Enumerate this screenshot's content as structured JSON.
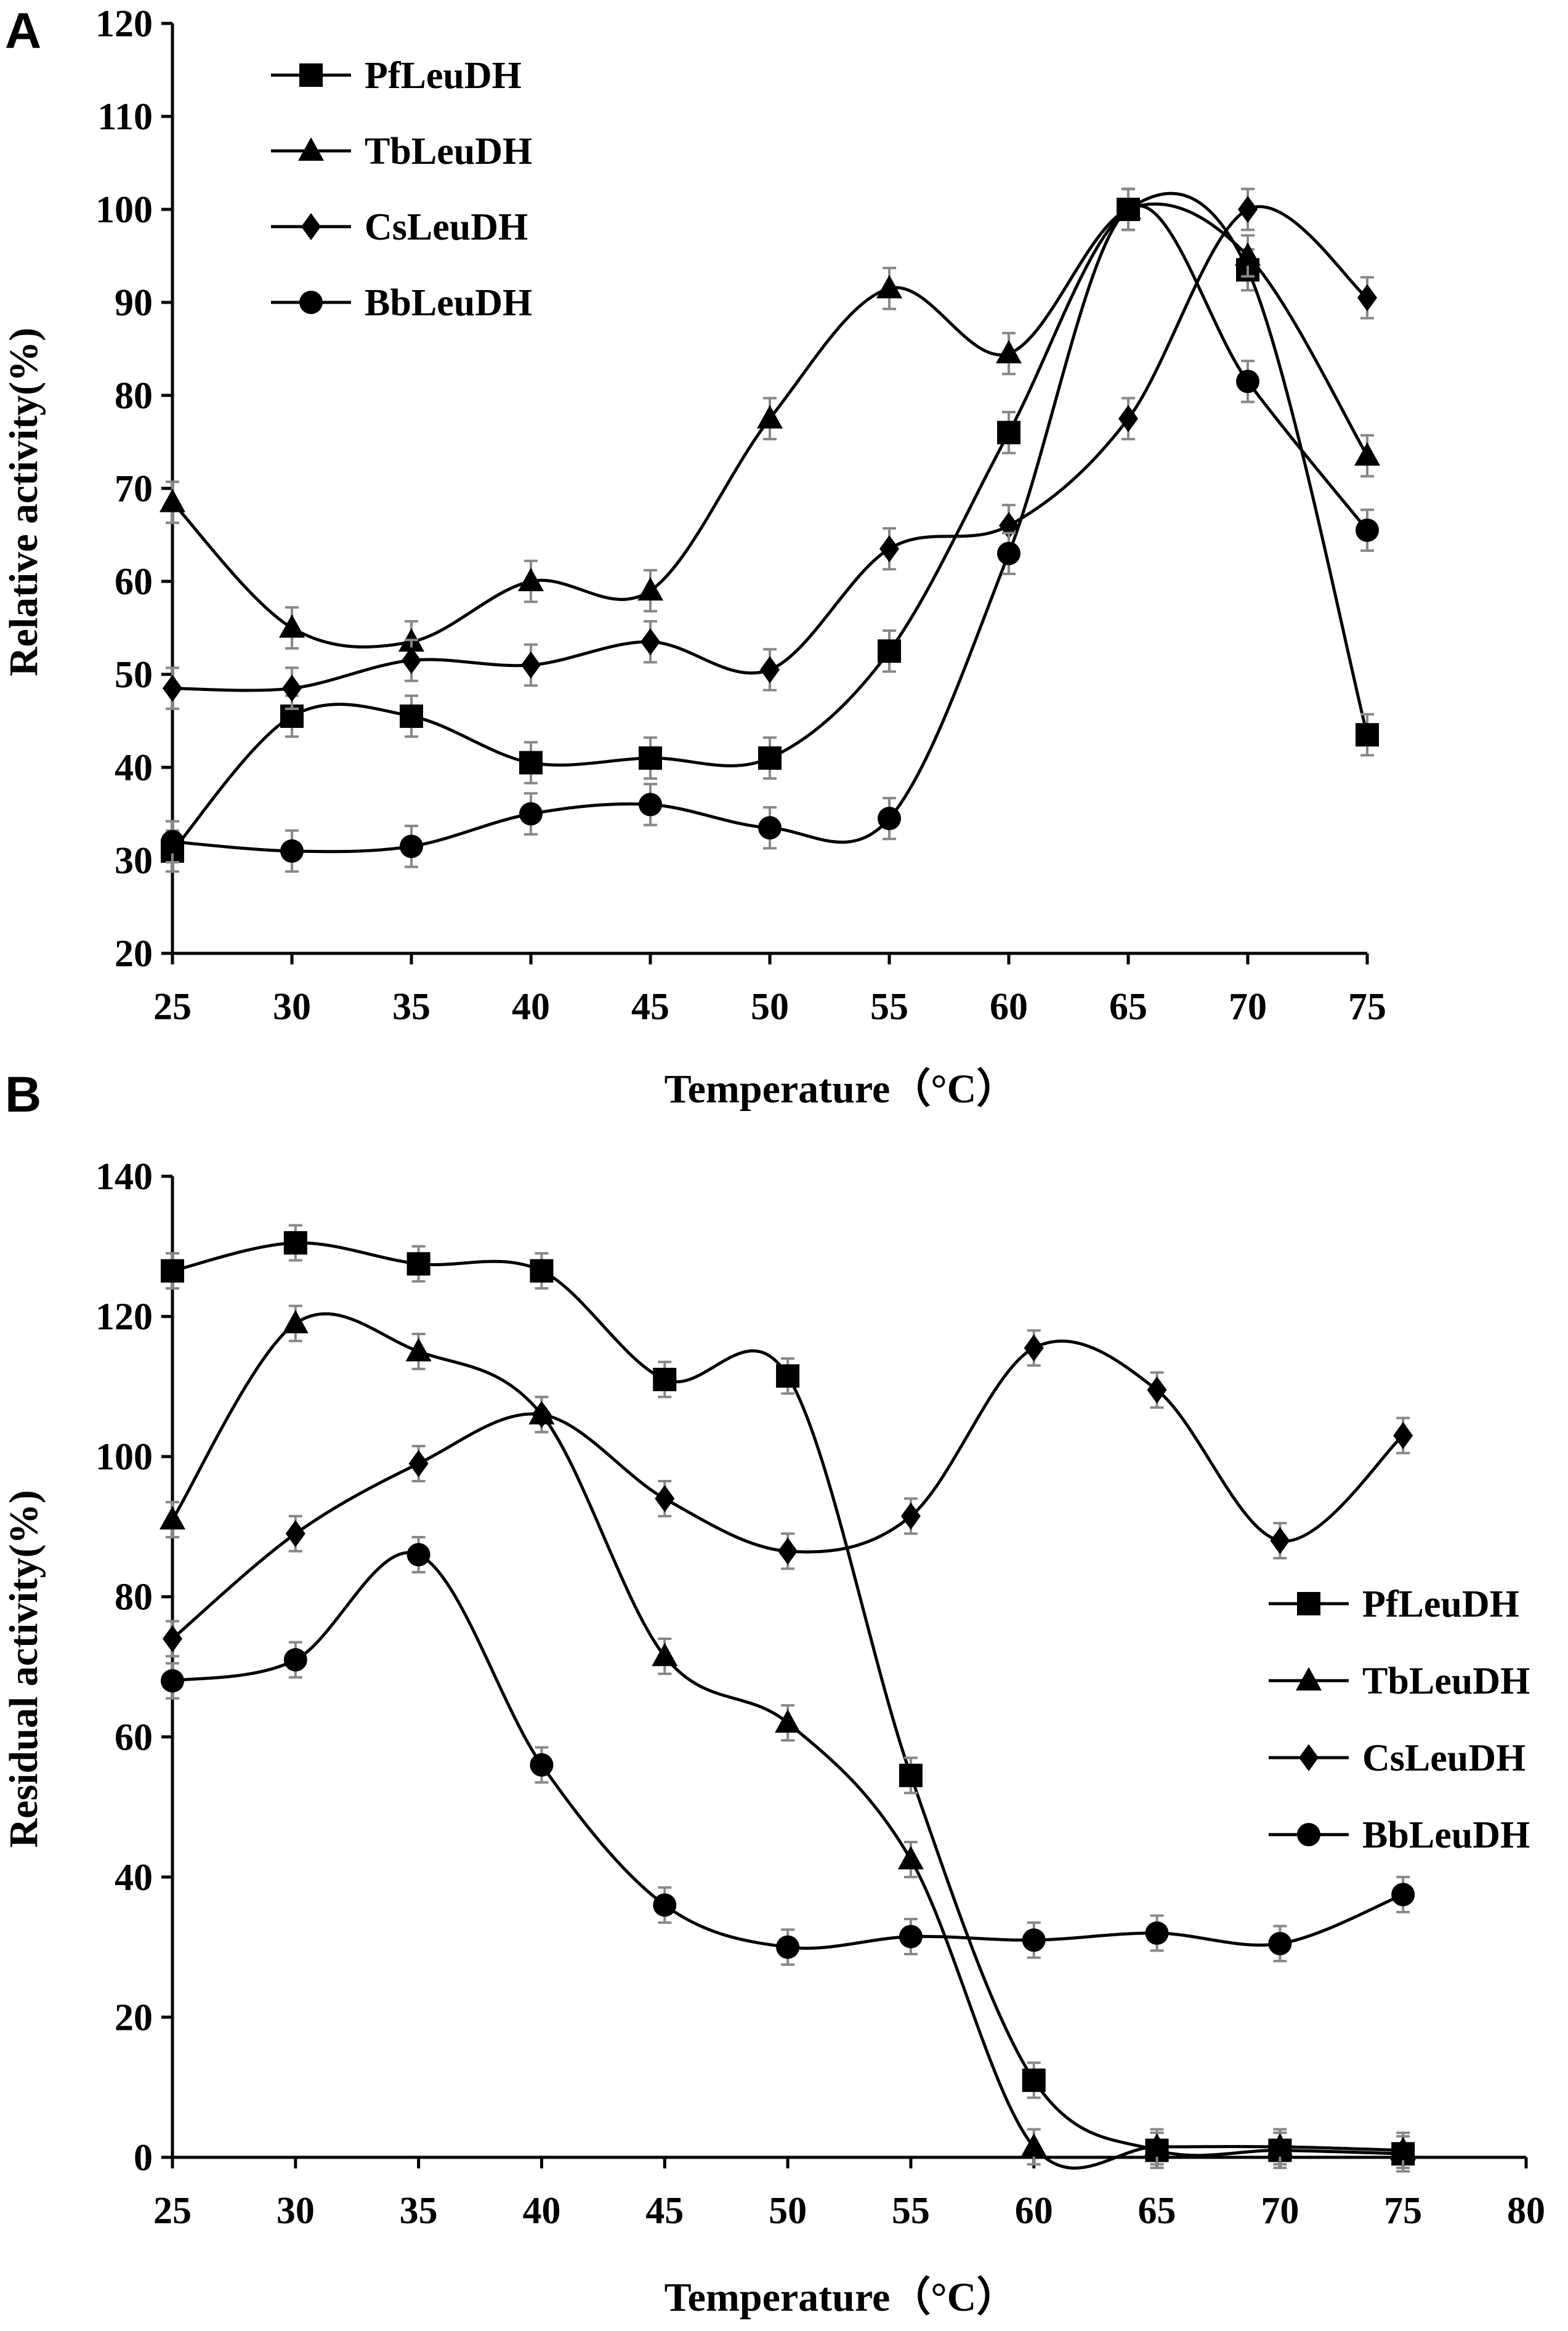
{
  "chart_data": [
    {
      "panel": "A",
      "type": "line",
      "title": "",
      "xlabel": "Temperature（°C）",
      "ylabel": "Relative activity(%)",
      "x": [
        25,
        30,
        35,
        40,
        45,
        50,
        55,
        60,
        65,
        70,
        75
      ],
      "xlim": [
        25,
        75
      ],
      "ylim": [
        20,
        120
      ],
      "xticks": [
        "25",
        "30",
        "35",
        "40",
        "45",
        "50",
        "55",
        "60",
        "65",
        "70",
        "75"
      ],
      "yticks": [
        "20",
        "30",
        "40",
        "50",
        "60",
        "70",
        "80",
        "90",
        "100",
        "110",
        "120"
      ],
      "grid": false,
      "legend_position": "top-left",
      "series": [
        {
          "name": "PfLeuDH",
          "marker": "square",
          "error": 2.2,
          "values": [
            31,
            45.5,
            45.5,
            40.5,
            41,
            41,
            52.5,
            76,
            100,
            93.5,
            43.5
          ]
        },
        {
          "name": "TbLeuDH",
          "marker": "triangle",
          "error": 2.2,
          "values": [
            68.5,
            55,
            53.5,
            60,
            59,
            77.5,
            91.5,
            84.5,
            100,
            95,
            73.5
          ]
        },
        {
          "name": "CsLeuDH",
          "marker": "diamond",
          "error": 2.2,
          "values": [
            48.5,
            48.5,
            51.5,
            51,
            53.5,
            50.5,
            63.5,
            66,
            77.5,
            100,
            90.5
          ]
        },
        {
          "name": "BbLeuDH",
          "marker": "circle",
          "error": 2.2,
          "values": [
            32,
            31,
            31.5,
            35,
            36,
            33.5,
            34.5,
            63,
            100,
            81.5,
            65.5
          ]
        }
      ]
    },
    {
      "panel": "B",
      "type": "line",
      "title": "",
      "xlabel": "Temperature（°C）",
      "ylabel": "Residual activity(%)",
      "x": [
        25,
        30,
        35,
        40,
        45,
        50,
        55,
        60,
        65,
        70,
        75
      ],
      "xlim": [
        25,
        80
      ],
      "ylim": [
        0,
        140
      ],
      "xticks": [
        "25",
        "30",
        "35",
        "40",
        "45",
        "50",
        "55",
        "60",
        "65",
        "70",
        "75",
        "80"
      ],
      "yticks": [
        "0",
        "20",
        "40",
        "60",
        "80",
        "100",
        "120",
        "140"
      ],
      "grid": false,
      "legend_position": "right",
      "series": [
        {
          "name": "PfLeuDH",
          "marker": "square",
          "error": 2.5,
          "values": [
            126.5,
            130.5,
            127.5,
            126.5,
            111,
            111.5,
            54.5,
            11,
            1,
            1,
            0.5
          ]
        },
        {
          "name": "TbLeuDH",
          "marker": "triangle",
          "error": 2.5,
          "values": [
            91,
            119,
            115,
            106,
            71.5,
            62,
            42.5,
            1.5,
            1.5,
            1.5,
            1
          ]
        },
        {
          "name": "CsLeuDH",
          "marker": "diamond",
          "error": 2.5,
          "values": [
            74,
            89,
            99,
            106,
            94,
            86.5,
            91.5,
            115.5,
            109.5,
            88,
            103
          ]
        },
        {
          "name": "BbLeuDH",
          "marker": "circle",
          "error": 2.5,
          "values": [
            68,
            71,
            86,
            56,
            36,
            30,
            31.5,
            31,
            32,
            30.5,
            37.5
          ]
        }
      ]
    }
  ]
}
